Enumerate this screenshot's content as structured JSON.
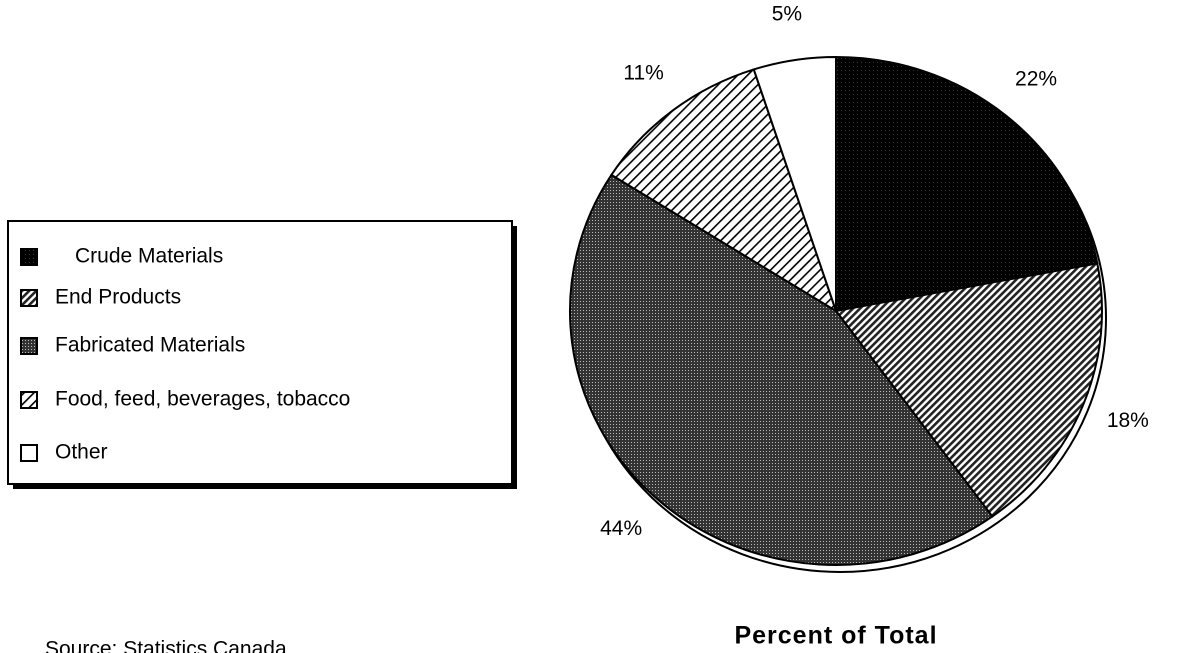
{
  "chart_data": {
    "type": "pie",
    "title": "Percent of Total",
    "source": "Source: Statistics Canada",
    "categories": [
      "Crude Materials",
      "End Products",
      "Fabricated Materials",
      "Food, feed, beverages, tobacco",
      "Other"
    ],
    "values": [
      22,
      18,
      44,
      11,
      5
    ],
    "value_labels": [
      "22%",
      "18%",
      "44%",
      "11%",
      "5%"
    ],
    "legend": "left"
  }
}
